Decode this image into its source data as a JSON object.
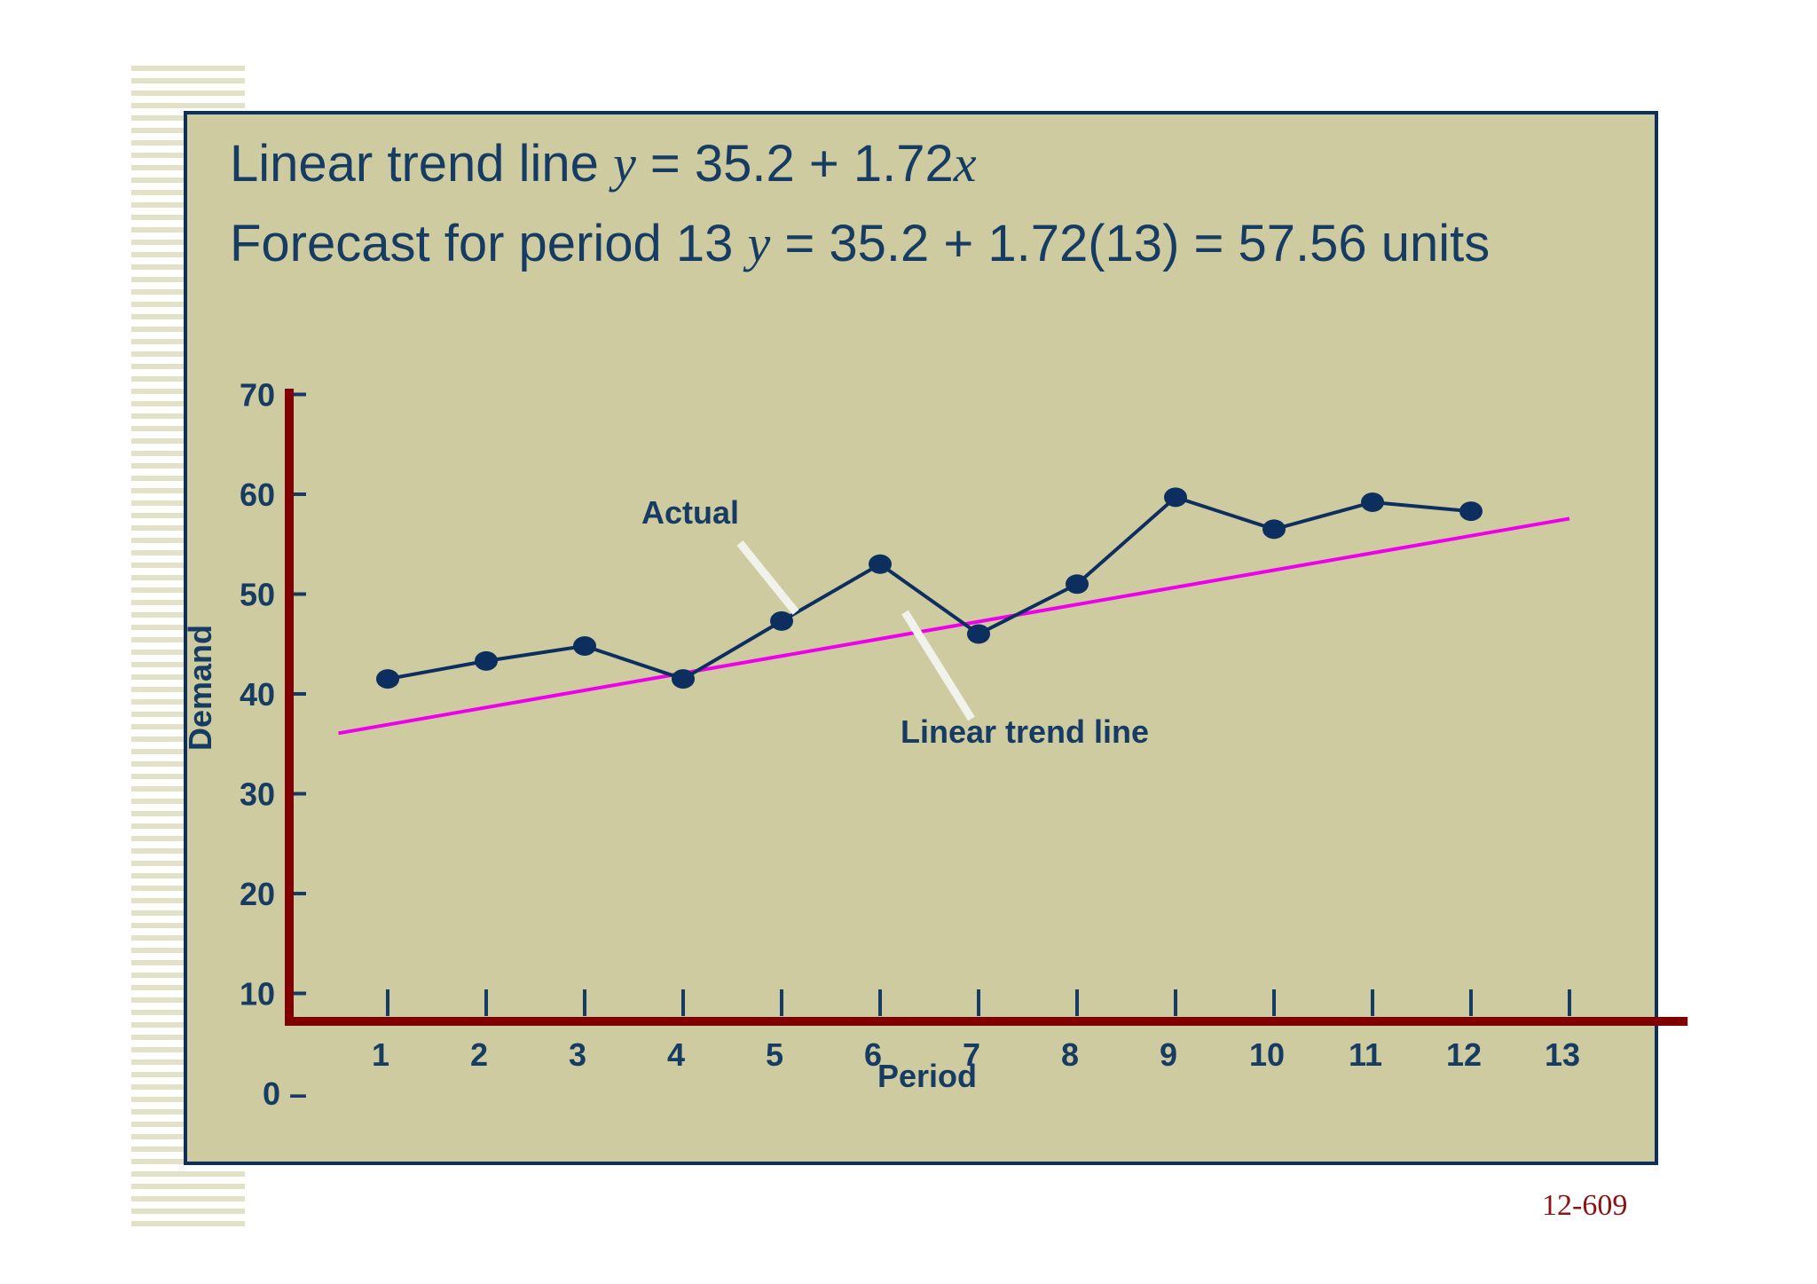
{
  "equations": {
    "line1": {
      "label": "Linear trend line ",
      "var": "y",
      "expr": " = 35.2 + 1.72",
      "var2": "x"
    },
    "line2": {
      "label": "Forecast for period 13   ",
      "var": "y",
      "expr": " = 35.2 + 1.72(13)  = 57.56 units"
    }
  },
  "page_number": "12-609",
  "chart_data": {
    "type": "line",
    "title": "",
    "xlabel": "Period",
    "ylabel": "Demand",
    "x": [
      1,
      2,
      3,
      4,
      5,
      6,
      7,
      8,
      9,
      10,
      11,
      12
    ],
    "x_ticks": [
      "1",
      "2",
      "3",
      "4",
      "5",
      "6",
      "7",
      "8",
      "9",
      "10",
      "11",
      "12",
      "13"
    ],
    "y_ticks": [
      "0 –",
      "10",
      "20",
      "30",
      "40",
      "50",
      "60",
      "70"
    ],
    "xlim": [
      0,
      13
    ],
    "ylim": [
      0,
      70
    ],
    "grid": false,
    "series": [
      {
        "name": "Actual",
        "values": [
          41.5,
          43.3,
          44.8,
          41.5,
          47.3,
          53.0,
          46.0,
          51.0,
          59.7,
          56.5,
          59.2,
          58.3
        ],
        "color": "#0d2f5f"
      },
      {
        "name": "Linear trend line",
        "intercept": 35.2,
        "slope": 1.72,
        "x_range": [
          0.5,
          13
        ],
        "color": "#ee00ee"
      }
    ],
    "axis_color": "#800000",
    "pointer_color": "#f2f2ec"
  }
}
